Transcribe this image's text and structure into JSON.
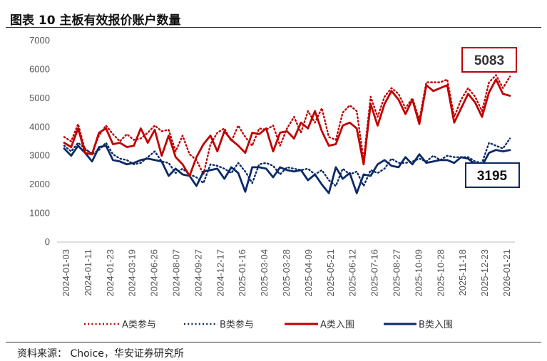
{
  "figure": {
    "title": "图表 10 主板有效报价账户数量",
    "source": "资料来源： Choice，华安证券研究所"
  },
  "colors": {
    "red": "#c00000",
    "navy": "#0b2a66",
    "axis": "#bfbfbf"
  },
  "chart_data": {
    "type": "line",
    "title": "主板有效报价账户数量",
    "ylim": [
      0,
      7000
    ],
    "yticks": [
      0,
      1000,
      2000,
      3000,
      4000,
      5000,
      6000,
      7000
    ],
    "x_tick_labels": [
      "2024-01-03",
      "2024-01-11",
      "2024-01-23",
      "2024-03-19",
      "2024-06-26",
      "2024-08-07",
      "2024-09-27",
      "2024-12-17",
      "2025-01-16",
      "2025-03-04",
      "2025-03-28",
      "2025-04-09",
      "2025-05-21",
      "2025-06-12",
      "2025-07-16",
      "2025-08-27",
      "2025-10-09",
      "2025-10-28",
      "2025-11-18",
      "2025-12-23",
      "2026-01-21"
    ],
    "legend": [
      "A类参与",
      "B类参与",
      "A类入围",
      "B类入围"
    ],
    "callouts": {
      "a_last": "5083",
      "b_last": "3195"
    },
    "series": [
      {
        "name": "A类参与",
        "style": "dotted",
        "color": "red",
        "values": [
          3650,
          3500,
          4100,
          3200,
          3100,
          3700,
          4050,
          3750,
          3500,
          3750,
          3550,
          3600,
          3800,
          4050,
          3850,
          3900,
          3150,
          3700,
          3050,
          2850,
          2350,
          3400,
          3800,
          3950,
          3500,
          4050,
          3650,
          3350,
          3950,
          3900,
          4050,
          3350,
          3950,
          4350,
          3800,
          4550,
          4150,
          4650,
          3650,
          3550,
          4500,
          4750,
          4550,
          2850,
          5050,
          4350,
          5050,
          5350,
          5150,
          4650,
          5000,
          4250,
          5550,
          5550,
          5550,
          5650,
          4350,
          4950,
          5350,
          5050,
          4550,
          5550,
          5800,
          5350,
          5750
        ]
      },
      {
        "name": "B类参与",
        "style": "dotted",
        "color": "navy",
        "values": [
          3350,
          3150,
          3450,
          3250,
          3050,
          3200,
          3450,
          3050,
          2900,
          2850,
          2700,
          2750,
          2950,
          3150,
          2800,
          2750,
          2400,
          2550,
          2350,
          2250,
          2050,
          2700,
          2650,
          2550,
          2400,
          2750,
          2450,
          2050,
          2700,
          2750,
          2650,
          2350,
          2600,
          2550,
          2500,
          2550,
          2350,
          2500,
          2150,
          1950,
          2550,
          2350,
          2450,
          1950,
          2500,
          2400,
          2550,
          2900,
          2750,
          2750,
          2800,
          2900,
          2800,
          3000,
          2850,
          3000,
          2950,
          2950,
          2950,
          2800,
          2750,
          3450,
          3350,
          3250,
          3600
        ]
      },
      {
        "name": "A类入围",
        "style": "solid",
        "color": "red",
        "values": [
          3450,
          3300,
          3950,
          3100,
          3050,
          3800,
          3950,
          3400,
          3450,
          3300,
          3350,
          3950,
          3450,
          3900,
          3000,
          3700,
          2950,
          2700,
          2300,
          2950,
          3400,
          3700,
          3150,
          3850,
          3550,
          3350,
          3100,
          3800,
          3750,
          3950,
          3150,
          3800,
          3850,
          3600,
          4150,
          3950,
          4550,
          3850,
          3350,
          3400,
          4050,
          4150,
          3950,
          2700,
          4800,
          4050,
          4800,
          5250,
          4950,
          4450,
          4950,
          4100,
          5450,
          5250,
          5350,
          5450,
          4150,
          4650,
          5150,
          4850,
          4350,
          5200,
          5650,
          5150,
          5083
        ]
      },
      {
        "name": "B类入围",
        "style": "solid",
        "color": "navy",
        "values": [
          3250,
          3000,
          3350,
          3100,
          2800,
          3300,
          3350,
          2850,
          2800,
          2700,
          2750,
          2850,
          2900,
          2850,
          2800,
          2300,
          2550,
          2350,
          2300,
          1950,
          2450,
          2500,
          2550,
          2200,
          2600,
          2400,
          1750,
          2600,
          2600,
          2550,
          2250,
          2600,
          2500,
          2450,
          2500,
          2150,
          2350,
          2000,
          1700,
          2600,
          2200,
          2400,
          1700,
          2350,
          2300,
          2700,
          2850,
          2650,
          2600,
          2950,
          2700,
          3050,
          2750,
          2800,
          2850,
          2850,
          2750,
          2950,
          2900,
          2700,
          2650,
          3100,
          3200,
          3150,
          3195
        ]
      }
    ]
  }
}
